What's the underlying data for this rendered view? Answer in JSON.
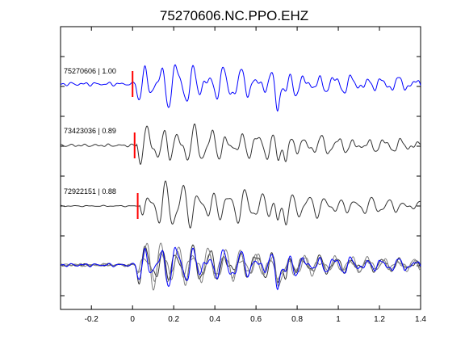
{
  "chart_data": {
    "type": "line",
    "title": "75270606.NC.PPO.EHZ",
    "xlabel": "",
    "ylabel": "",
    "xlim": [
      -0.35,
      1.4
    ],
    "x_ticks": [
      -0.2,
      0,
      0.2,
      0.4,
      0.6,
      0.8,
      1,
      1.2,
      1.4
    ],
    "x_tick_labels": [
      "-0.2",
      "0",
      "0.2",
      "0.4",
      "0.6",
      "0.8",
      "1",
      "1.2",
      "1.4"
    ],
    "grid": false,
    "legend": "none",
    "colors": {
      "reference": "#0000ff",
      "similar": "#333333",
      "overlay": "#808080",
      "pick": "#ff0000"
    },
    "traces": [
      {
        "label": "75270606 | 1.00",
        "event": "75270606",
        "correlation": 1.0,
        "pick_time": 0.0,
        "color": "#0000ff"
      },
      {
        "label": "73423036 | 0.89",
        "event": "73423036",
        "correlation": 0.89,
        "pick_time": 0.01,
        "color": "#333333"
      },
      {
        "label": "72922151 | 0.88",
        "event": "72922151",
        "correlation": 0.88,
        "pick_time": 0.025,
        "color": "#333333"
      }
    ]
  }
}
